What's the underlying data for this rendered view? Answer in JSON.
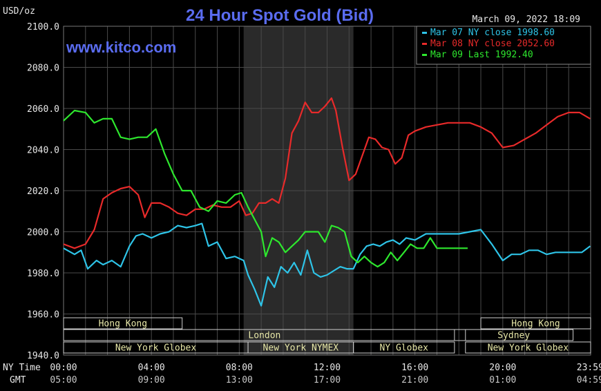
{
  "header": {
    "title": "24 Hour Spot Gold (Bid)",
    "timestamp": "March 09, 2022 18:09",
    "watermark": "www.kitco.com",
    "unit": "USD/oz"
  },
  "colors": {
    "background": "#000000",
    "grid": "#4a4a4a",
    "title": "#5a6cf0",
    "text": "#e8e8e8",
    "session_shade": "#2a2a2a"
  },
  "chart_data": {
    "type": "line",
    "title": "24 Hour Spot Gold (Bid)",
    "ylabel": "USD/oz",
    "ylim": [
      1940,
      2100
    ],
    "y_ticks": [
      "2100.0",
      "2080.0",
      "2060.0",
      "2040.0",
      "2020.0",
      "2000.0",
      "1980.0",
      "1960.0",
      "1940.0"
    ],
    "y_tick_values": [
      2100,
      2080,
      2060,
      2040,
      2020,
      2000,
      1980,
      1960,
      1940
    ],
    "x_domain_hours": [
      0,
      24
    ],
    "x_ticks_ny": [
      "00:00",
      "04:00",
      "08:00",
      "12:00",
      "16:00",
      "20:00",
      "23:59"
    ],
    "x_ticks_gmt": [
      "05:00",
      "09:00",
      "13:00",
      "17:00",
      "21:00",
      "01:00",
      "04:59"
    ],
    "x_tick_hours": [
      0,
      4,
      8,
      12,
      16,
      20,
      23.98
    ],
    "row_label_ny": "NY Time",
    "row_label_gmt": "GMT",
    "grid": true,
    "legend_position": "top-right",
    "shaded_session_hours": [
      8.2,
      13.2
    ],
    "series": [
      {
        "name": "Mar 07 NY close 1998.60",
        "color": "#2ec4e8",
        "x": [
          0,
          0.5,
          0.8,
          1.1,
          1.5,
          1.8,
          2.2,
          2.6,
          3.0,
          3.3,
          3.6,
          4.0,
          4.4,
          4.8,
          5.2,
          5.6,
          6.0,
          6.3,
          6.6,
          7.0,
          7.4,
          7.8,
          8.2,
          8.4,
          8.7,
          9.0,
          9.3,
          9.6,
          9.9,
          10.2,
          10.5,
          10.8,
          11.1,
          11.4,
          11.7,
          12.0,
          12.3,
          12.6,
          12.9,
          13.2,
          13.5,
          13.8,
          14.1,
          14.4,
          14.7,
          15.0,
          15.3,
          15.6,
          16.0,
          16.5,
          17.0,
          17.5,
          18.0,
          18.5,
          19.0,
          19.5,
          20.0,
          20.4,
          20.8,
          21.2,
          21.6,
          22.0,
          22.4,
          22.8,
          23.2,
          23.6,
          23.98
        ],
        "y": [
          1992,
          1989,
          1991,
          1982,
          1986,
          1984,
          1986,
          1983,
          1993,
          1998,
          1999,
          1997,
          1999,
          2000,
          2003,
          2002,
          2003,
          2004,
          1993,
          1995,
          1987,
          1988,
          1986,
          1979,
          1972,
          1964,
          1978,
          1973,
          1983,
          1980,
          1985,
          1979,
          1991,
          1980,
          1978,
          1979,
          1981,
          1983,
          1982,
          1982,
          1989,
          1993,
          1994,
          1993,
          1995,
          1996,
          1994,
          1997,
          1996,
          1999,
          1999,
          1999,
          1999,
          2000,
          2001,
          1994,
          1986,
          1989,
          1989,
          1991,
          1991,
          1989,
          1990,
          1990,
          1990,
          1990,
          1993
        ]
      },
      {
        "name": "Mar 08 NY close 2052.60",
        "color": "#e82a2a",
        "x": [
          0,
          0.5,
          1.0,
          1.4,
          1.8,
          2.2,
          2.6,
          3.0,
          3.4,
          3.7,
          4.0,
          4.4,
          4.8,
          5.2,
          5.6,
          6.0,
          6.4,
          6.8,
          7.2,
          7.6,
          8.0,
          8.3,
          8.6,
          8.9,
          9.2,
          9.5,
          9.8,
          10.1,
          10.4,
          10.7,
          11.0,
          11.3,
          11.6,
          11.9,
          12.2,
          12.4,
          12.7,
          13.0,
          13.3,
          13.6,
          13.9,
          14.2,
          14.5,
          14.8,
          15.1,
          15.4,
          15.7,
          16.0,
          16.5,
          17.0,
          17.5,
          18.0,
          18.5,
          19.0,
          19.5,
          20.0,
          20.5,
          21.0,
          21.5,
          22.0,
          22.5,
          23.0,
          23.5,
          23.98
        ],
        "y": [
          1994,
          1992,
          1994,
          2001,
          2016,
          2019,
          2021,
          2022,
          2018,
          2007,
          2014,
          2014,
          2012,
          2009,
          2008,
          2011,
          2011,
          2013,
          2012,
          2012,
          2015,
          2008,
          2009,
          2014,
          2014,
          2016,
          2014,
          2026,
          2048,
          2054,
          2063,
          2058,
          2058,
          2061,
          2065,
          2059,
          2041,
          2025,
          2028,
          2037,
          2046,
          2045,
          2041,
          2040,
          2033,
          2036,
          2047,
          2049,
          2051,
          2052,
          2053,
          2053,
          2053,
          2051,
          2048,
          2041,
          2042,
          2045,
          2048,
          2052,
          2056,
          2058,
          2058,
          2055
        ]
      },
      {
        "name": "Mar 09 Last 1992.40",
        "color": "#2ee82e",
        "x": [
          0,
          0.5,
          1.0,
          1.4,
          1.8,
          2.2,
          2.6,
          3.0,
          3.4,
          3.8,
          4.2,
          4.6,
          5.0,
          5.4,
          5.8,
          6.2,
          6.6,
          7.0,
          7.4,
          7.8,
          8.1,
          8.4,
          8.7,
          9.0,
          9.2,
          9.5,
          9.8,
          10.1,
          10.4,
          10.7,
          11.0,
          11.3,
          11.6,
          11.9,
          12.2,
          12.5,
          12.8,
          13.1,
          13.4,
          13.7,
          14.0,
          14.3,
          14.6,
          14.9,
          15.2,
          15.5,
          15.8,
          16.1,
          16.4,
          16.7,
          17.0,
          17.5,
          18.0,
          18.4
        ],
        "y": [
          2054,
          2059,
          2058,
          2053,
          2055,
          2055,
          2046,
          2045,
          2046,
          2046,
          2050,
          2038,
          2028,
          2020,
          2020,
          2012,
          2010,
          2015,
          2014,
          2018,
          2019,
          2012,
          2006,
          2000,
          1988,
          1997,
          1995,
          1990,
          1993,
          1996,
          2000,
          2000,
          2000,
          1995,
          2003,
          2002,
          2000,
          1988,
          1985,
          1988,
          1985,
          1983,
          1985,
          1990,
          1986,
          1990,
          1994,
          1992,
          1992,
          1997,
          1992,
          1992,
          1992,
          1992
        ]
      }
    ]
  },
  "session_boxes": [
    {
      "label": "Hong Kong",
      "row": 1,
      "start": 0,
      "end": 5.4
    },
    {
      "label": "London",
      "row": 2,
      "start": 0,
      "end": 18.3
    },
    {
      "label": "New York Globex",
      "row": 3,
      "start": 0,
      "end": 8.4
    },
    {
      "label": "New York NYMEX",
      "row": 3,
      "start": 8.4,
      "end": 13.2
    },
    {
      "label": "NY Globex",
      "row": 3,
      "start": 13.2,
      "end": 17.8
    },
    {
      "label": "Hong Kong",
      "row": 1,
      "start": 19.0,
      "end": 24
    },
    {
      "label": "Sydney",
      "row": 2,
      "start": 17.8,
      "end": 23.2
    },
    {
      "label": "New York Globex",
      "row": 3,
      "start": 18.3,
      "end": 24
    }
  ]
}
